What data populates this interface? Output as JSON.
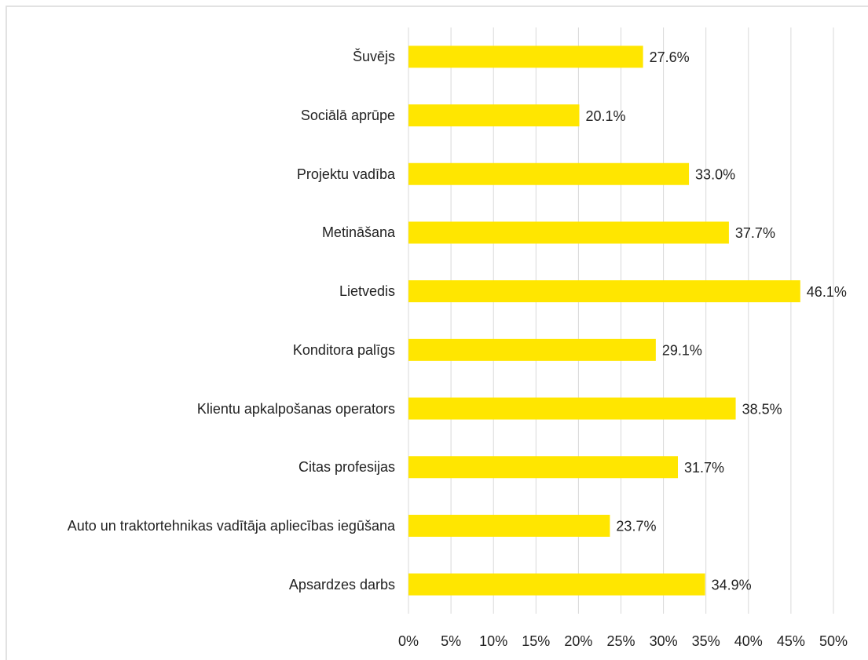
{
  "chart_data": {
    "type": "bar",
    "orientation": "horizontal",
    "categories": [
      "Šuvējs",
      "Sociālā aprūpe",
      "Projektu vadība",
      "Metināšana",
      "Lietvedis",
      "Konditora palīgs",
      "Klientu apkalpošanas operators",
      "Citas profesijas",
      "Auto un traktortehnikas vadītāja apliecības iegūšana",
      "Apsardzes darbs"
    ],
    "values": [
      27.6,
      20.1,
      33.0,
      37.7,
      46.1,
      29.1,
      38.5,
      31.7,
      23.7,
      34.9
    ],
    "value_labels": [
      "27.6%",
      "20.1%",
      "33.0%",
      "37.7%",
      "46.1%",
      "29.1%",
      "38.5%",
      "31.7%",
      "23.7%",
      "34.9%"
    ],
    "color": "#ffe600",
    "xlim": [
      0,
      50
    ],
    "xticks": [
      {
        "value": 0,
        "label": "0%"
      },
      {
        "value": 5,
        "label": "5%"
      },
      {
        "value": 10,
        "label": "10%"
      },
      {
        "value": 15,
        "label": "15%"
      },
      {
        "value": 20,
        "label": "20%"
      },
      {
        "value": 25,
        "label": "25%"
      },
      {
        "value": 30,
        "label": "30%"
      },
      {
        "value": 35,
        "label": "35%"
      },
      {
        "value": 40,
        "label": "40%"
      },
      {
        "value": 45,
        "label": "45%"
      },
      {
        "value": 50,
        "label": "50%"
      }
    ],
    "grid": true
  }
}
